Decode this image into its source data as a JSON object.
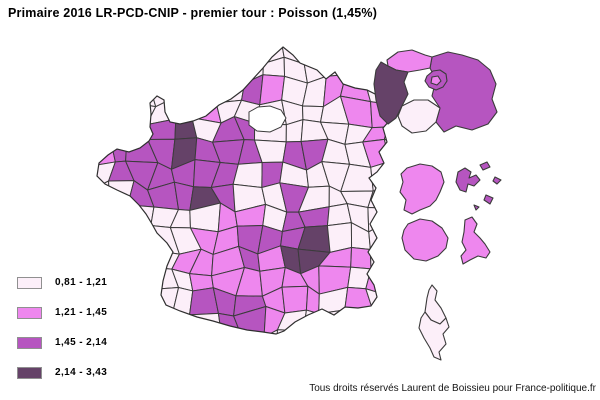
{
  "title": "Primaire 2016 LR-PCD-CNIP - premier tour : Poisson (1,45%)",
  "legend": {
    "classes": [
      {
        "label": "0,81 - 1,21",
        "color": "#fceff9"
      },
      {
        "label": "1,21 - 1,45",
        "color": "#ee87ee"
      },
      {
        "label": "1,45 - 2,14",
        "color": "#b655c0"
      },
      {
        "label": "2,14 - 3,43",
        "color": "#654268"
      }
    ]
  },
  "footer": {
    "credit": "Tous droits réservés Laurent de Boissieu pour France-politique.fr"
  },
  "map": {
    "background": "#ffffff",
    "border_color": "#3b3b3b",
    "outline_color": "#2f2f2f",
    "grid_classes": [
      "000000000000000",
      "000000000000000",
      "000000021001100",
      "000001000000110",
      "111230220000010",
      "122232220220010",
      "022222202000000",
      "002223200200000",
      "000000110220000",
      "000001122230000",
      "000011121331100",
      "000001111111010",
      "000002221110100",
      "000000221000000",
      "000000000000000"
    ],
    "regions": {
      "val_doise": 1,
      "yvelines": 3,
      "seine_et_marne": 2,
      "essonne": 0,
      "petite_couronne": 2,
      "paris": 1,
      "haute_corse": 0,
      "corse_du_sud": 0,
      "guyane": 1,
      "guadeloupe": 2,
      "reunion": 1,
      "martinique": 1
    }
  }
}
